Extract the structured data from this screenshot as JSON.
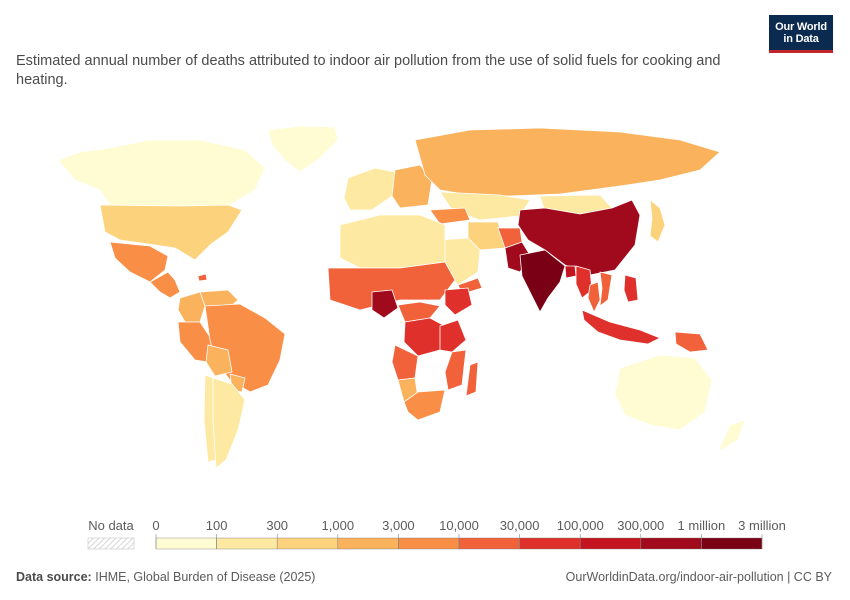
{
  "title": "Estimated annual number of deaths attributed to indoor air pollution from the use of solid fuels for cooking and heating.",
  "logo": {
    "line1": "Our World",
    "line2": "in Data",
    "bg": "#0b2a4f",
    "accent": "#c0272d"
  },
  "source_label": "Data source:",
  "source_text": "IHME, Global Burden of Disease (2025)",
  "url_text": "OurWorldinData.org/indoor-air-pollution | CC BY",
  "chart_data": {
    "type": "choropleth-map",
    "legend": {
      "no_data_label": "No data",
      "tick_labels": [
        "0",
        "100",
        "300",
        "1,000",
        "3,000",
        "10,000",
        "30,000",
        "100,000",
        "300,000",
        "1 million",
        "3 million"
      ],
      "colors": [
        "#fffbd2",
        "#fde9a2",
        "#fdd27c",
        "#fbb25c",
        "#f98e47",
        "#f1623a",
        "#e0302c",
        "#c41420",
        "#a00a1c",
        "#7a0016"
      ],
      "placement": "bottom"
    },
    "regions": [
      {
        "name": "Canada",
        "bin": 0
      },
      {
        "name": "United States",
        "bin": 2
      },
      {
        "name": "Greenland",
        "bin": 0
      },
      {
        "name": "Mexico",
        "bin": 4
      },
      {
        "name": "Central America",
        "bin": 4
      },
      {
        "name": "Haiti",
        "bin": 5
      },
      {
        "name": "Colombia",
        "bin": 3
      },
      {
        "name": "Venezuela",
        "bin": 3
      },
      {
        "name": "Peru",
        "bin": 4
      },
      {
        "name": "Brazil",
        "bin": 4
      },
      {
        "name": "Bolivia",
        "bin": 3
      },
      {
        "name": "Chile",
        "bin": 1
      },
      {
        "name": "Argentina",
        "bin": 1
      },
      {
        "name": "Paraguay",
        "bin": 3
      },
      {
        "name": "Russia",
        "bin": 3
      },
      {
        "name": "Kazakhstan",
        "bin": 1
      },
      {
        "name": "Mongolia",
        "bin": 1
      },
      {
        "name": "China",
        "bin": 8
      },
      {
        "name": "India",
        "bin": 9
      },
      {
        "name": "Pakistan",
        "bin": 8
      },
      {
        "name": "Afghanistan",
        "bin": 5
      },
      {
        "name": "Bangladesh",
        "bin": 7
      },
      {
        "name": "Myanmar",
        "bin": 6
      },
      {
        "name": "Thailand",
        "bin": 5
      },
      {
        "name": "Vietnam",
        "bin": 5
      },
      {
        "name": "Indonesia",
        "bin": 6
      },
      {
        "name": "Philippines",
        "bin": 6
      },
      {
        "name": "Papua New Guinea",
        "bin": 5
      },
      {
        "name": "Japan",
        "bin": 2
      },
      {
        "name": "Australia",
        "bin": 0
      },
      {
        "name": "New Zealand",
        "bin": 0
      },
      {
        "name": "Western Europe",
        "bin": 1
      },
      {
        "name": "Eastern Europe",
        "bin": 3
      },
      {
        "name": "Turkey",
        "bin": 4
      },
      {
        "name": "Iran",
        "bin": 2
      },
      {
        "name": "Saudi Arabia",
        "bin": 1
      },
      {
        "name": "Yemen",
        "bin": 5
      },
      {
        "name": "North Africa",
        "bin": 1
      },
      {
        "name": "Sahel",
        "bin": 5
      },
      {
        "name": "Nigeria",
        "bin": 8
      },
      {
        "name": "Ethiopia",
        "bin": 6
      },
      {
        "name": "DR Congo",
        "bin": 6
      },
      {
        "name": "Tanzania",
        "bin": 6
      },
      {
        "name": "Central Africa",
        "bin": 5
      },
      {
        "name": "Angola",
        "bin": 5
      },
      {
        "name": "Namibia",
        "bin": 3
      },
      {
        "name": "South Africa",
        "bin": 4
      },
      {
        "name": "Mozambique",
        "bin": 5
      },
      {
        "name": "Madagascar",
        "bin": 5
      }
    ]
  }
}
